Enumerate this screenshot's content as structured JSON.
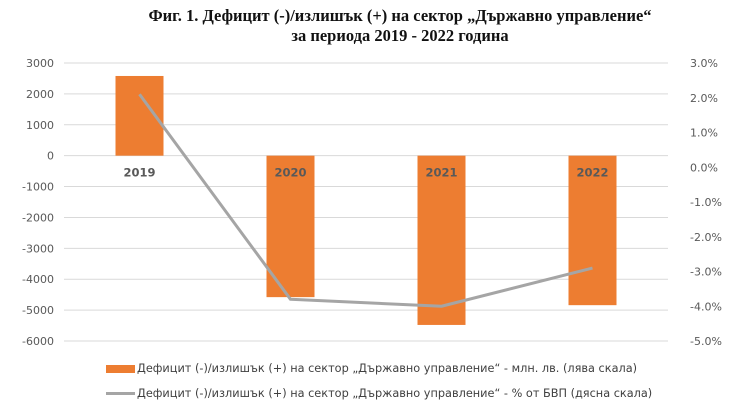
{
  "title": {
    "line1": "Фиг. 1. Дефицит (-)/излишък (+) на сектор „Държавно управление“",
    "line2": "за периода 2019 - 2022 година"
  },
  "colors": {
    "bar": "#ED7D31",
    "line": "#A5A5A5",
    "grid": "#D9D9D9"
  },
  "axes": {
    "left_ticks": [
      "3000",
      "2000",
      "1000",
      "0",
      "-1000",
      "-2000",
      "-3000",
      "-4000",
      "-5000",
      "-6000"
    ],
    "right_ticks": [
      "3.0%",
      "2.0%",
      "1.0%",
      "0.0%",
      "-1.0%",
      "-2.0%",
      "-3.0%",
      "-4.0%",
      "-5.0%"
    ]
  },
  "categories": [
    "2019",
    "2020",
    "2021",
    "2022"
  ],
  "legend": {
    "bar": "Дефицит (-)/излишък (+) на сектор „Държавно управление“ - млн. лв. (лява скала)",
    "line": "Дефицит (-)/излишък (+) на сектор „Държавно управление“ - % от БВП (дясна скала)"
  },
  "chart_data": {
    "type": "bar",
    "title": "Фиг. 1. Дефицит (-)/излишък (+) на сектор „Държавно управление“ за периода 2019 - 2022 година",
    "categories": [
      "2019",
      "2020",
      "2021",
      "2022"
    ],
    "series": [
      {
        "name": "Дефицит (-)/излишък (+) на сектор „Държавно управление“ - млн. лв. (лява скала)",
        "type": "bar",
        "axis": "left",
        "values": [
          2580,
          -4580,
          -5480,
          -4840
        ]
      },
      {
        "name": "Дефицит (-)/излишък (+) на сектор „Държавно управление“ - % от БВП (дясна скала)",
        "type": "line",
        "axis": "right",
        "values": [
          2.1,
          -3.8,
          -4.0,
          -2.9
        ]
      }
    ],
    "xlabel": "",
    "ylabel_left": "млн. лв.",
    "ylabel_right": "% от БВП",
    "ylim_left": [
      -6000,
      3000
    ],
    "ylim_right": [
      -5.0,
      3.0
    ],
    "grid": true,
    "legend_position": "bottom"
  }
}
